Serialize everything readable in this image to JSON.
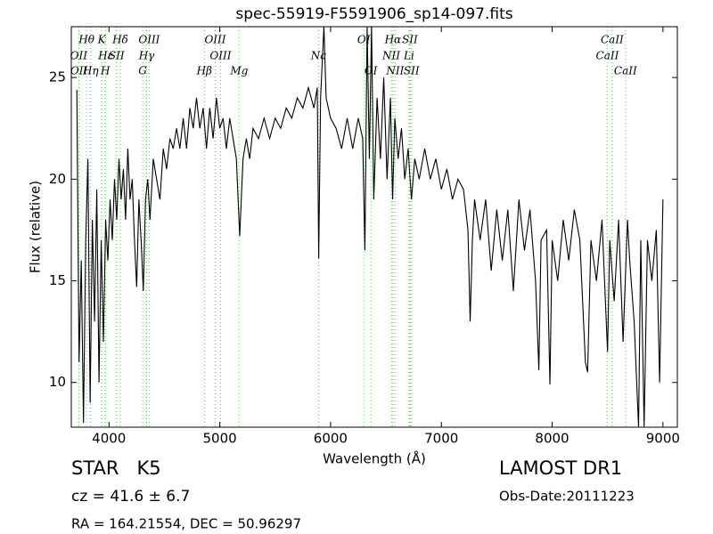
{
  "chart_data": {
    "type": "line",
    "title": "spec-55919-F5591906_sp14-097.fits",
    "xlabel": "Wavelength (Å)",
    "ylabel": "Flux (relative)",
    "xlim": [
      3660,
      9130
    ],
    "ylim": [
      7.8,
      27.5
    ],
    "xticks": [
      4000,
      5000,
      6000,
      7000,
      8000,
      9000
    ],
    "yticks": [
      10,
      15,
      20,
      25
    ],
    "color": "#000000",
    "line_color": "#5cb85c",
    "x": [
      3710,
      3730,
      3750,
      3770,
      3790,
      3810,
      3830,
      3850,
      3870,
      3890,
      3910,
      3930,
      3950,
      3970,
      3990,
      4010,
      4030,
      4050,
      4070,
      4090,
      4110,
      4130,
      4150,
      4170,
      4190,
      4210,
      4230,
      4250,
      4270,
      4290,
      4310,
      4330,
      4350,
      4370,
      4400,
      4430,
      4460,
      4490,
      4520,
      4550,
      4580,
      4610,
      4640,
      4670,
      4700,
      4730,
      4760,
      4790,
      4820,
      4850,
      4880,
      4910,
      4940,
      4970,
      5000,
      5030,
      5060,
      5090,
      5120,
      5150,
      5180,
      5210,
      5240,
      5270,
      5300,
      5350,
      5400,
      5450,
      5500,
      5550,
      5600,
      5650,
      5700,
      5750,
      5800,
      5850,
      5880,
      5893,
      5910,
      5940,
      5960,
      6000,
      6050,
      6100,
      6150,
      6200,
      6250,
      6290,
      6310,
      6330,
      6350,
      6370,
      6390,
      6420,
      6450,
      6480,
      6510,
      6540,
      6560,
      6580,
      6610,
      6640,
      6670,
      6700,
      6730,
      6760,
      6800,
      6850,
      6900,
      6950,
      7000,
      7050,
      7100,
      7150,
      7200,
      7240,
      7260,
      7280,
      7300,
      7350,
      7400,
      7450,
      7500,
      7550,
      7600,
      7650,
      7700,
      7750,
      7800,
      7850,
      7880,
      7900,
      7950,
      7980,
      8000,
      8050,
      8100,
      8150,
      8200,
      8250,
      8300,
      8320,
      8350,
      8400,
      8450,
      8500,
      8520,
      8560,
      8600,
      8640,
      8680,
      8700,
      8740,
      8780,
      8800,
      8830,
      8860,
      8900,
      8940,
      8970,
      9000
    ],
    "values": [
      24.4,
      11,
      16,
      8,
      17,
      21,
      9,
      18,
      13,
      19.5,
      10,
      17,
      12,
      18,
      16,
      19,
      17,
      20,
      18,
      21,
      19,
      20.5,
      18,
      21.5,
      19,
      20,
      17,
      14.7,
      19,
      17,
      14.5,
      19,
      20,
      18,
      21,
      20,
      19,
      21.5,
      20.5,
      22,
      21.5,
      22.5,
      21.5,
      23,
      21.5,
      23.5,
      22.5,
      24,
      22.5,
      23.5,
      21.5,
      23.5,
      22,
      24,
      22.5,
      23,
      21.5,
      23,
      22,
      21,
      17.2,
      21,
      22,
      21,
      22.5,
      22,
      23,
      22,
      23,
      22.5,
      23.5,
      23,
      24,
      23.5,
      24.5,
      23.5,
      24.5,
      16.1,
      24,
      27.5,
      24,
      23,
      22.5,
      21.5,
      23,
      21.5,
      23,
      22,
      16.5,
      27.5,
      21,
      27.5,
      19,
      24,
      21,
      25,
      20,
      24,
      19,
      23,
      21,
      22.5,
      20,
      21.5,
      19,
      21,
      20,
      21.5,
      20,
      21,
      19.5,
      20.5,
      19,
      20,
      19.5,
      17.5,
      13,
      17,
      19,
      17,
      19,
      15.5,
      18.5,
      16,
      18.5,
      14.5,
      19,
      16.5,
      18.5,
      15,
      10.6,
      17,
      17.5,
      9.9,
      17,
      15,
      18,
      16,
      18.5,
      17,
      11,
      10.5,
      17,
      15,
      18,
      11.5,
      17,
      14,
      18,
      12,
      18,
      16,
      13,
      7.8,
      17,
      7.8,
      17,
      15,
      17.5,
      10,
      19
    ],
    "lines": [
      {
        "label": "Hθ",
        "x": 3798,
        "row": 0
      },
      {
        "label": "K",
        "x": 3934,
        "row": 0
      },
      {
        "label": "Hδ",
        "x": 4102,
        "row": 0
      },
      {
        "label": "OIII",
        "x": 4363,
        "row": 0
      },
      {
        "label": "OIII",
        "x": 4959,
        "row": 0
      },
      {
        "label": "OI",
        "x": 6300,
        "row": 0
      },
      {
        "label": "Hα",
        "x": 6563,
        "row": 0
      },
      {
        "label": "SII",
        "x": 6716,
        "row": 0
      },
      {
        "label": "CaII",
        "x": 8542,
        "row": 0
      },
      {
        "label": "OII",
        "x": 3727,
        "row": 1
      },
      {
        "label": "Hε",
        "x": 3970,
        "row": 1
      },
      {
        "label": "SII",
        "x": 4068,
        "row": 1
      },
      {
        "label": "Hγ",
        "x": 4340,
        "row": 1
      },
      {
        "label": "OIII",
        "x": 5007,
        "row": 1
      },
      {
        "label": "Na",
        "x": 5893,
        "row": 1
      },
      {
        "label": "NII",
        "x": 6548,
        "row": 1
      },
      {
        "label": "Li",
        "x": 6708,
        "row": 1
      },
      {
        "label": "CaII",
        "x": 8498,
        "row": 1
      },
      {
        "label": "OII",
        "x": 3729,
        "row": 2
      },
      {
        "label": "Hη",
        "x": 3835,
        "row": 2
      },
      {
        "label": "H",
        "x": 3968,
        "row": 2
      },
      {
        "label": "G",
        "x": 4304,
        "row": 2
      },
      {
        "label": "Hβ",
        "x": 4861,
        "row": 2
      },
      {
        "label": "Mg",
        "x": 5175,
        "row": 2
      },
      {
        "label": "OI",
        "x": 6364,
        "row": 2
      },
      {
        "label": "NII",
        "x": 6583,
        "row": 2
      },
      {
        "label": "SII",
        "x": 6731,
        "row": 2
      },
      {
        "label": "CaII",
        "x": 8662,
        "row": 2
      }
    ]
  },
  "info": {
    "object": "STAR   K5",
    "cz": "cz = 41.6  ± 6.7",
    "coords": "RA = 164.21554, DEC = 50.96297",
    "survey": "LAMOST DR1",
    "date": "Obs-Date:20111223"
  }
}
